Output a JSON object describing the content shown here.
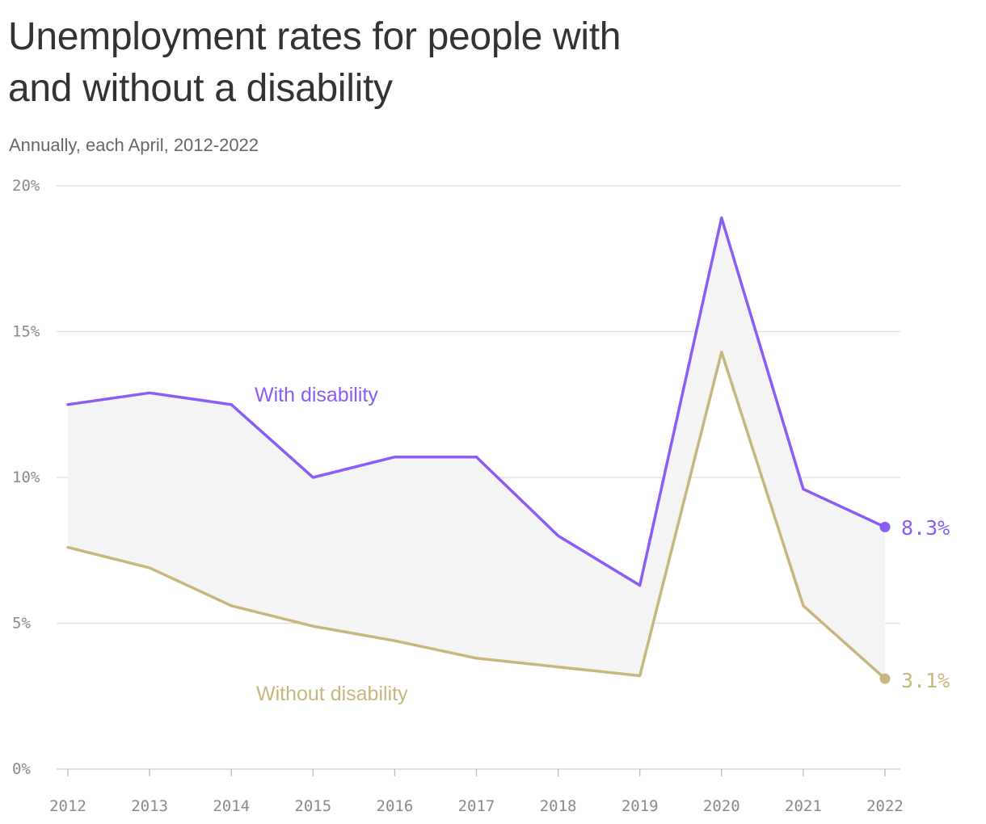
{
  "header": {
    "title_line1": "Unemployment rates for people with",
    "title_line2": "and without a disability",
    "subtitle": "Annually, each April, 2012-2022"
  },
  "colors": {
    "with_disability": "#8b5cf6",
    "without_disability": "#c7b77e",
    "gap_fill": "#f4f4f5",
    "gridline": "#dddddd"
  },
  "chart_data": {
    "type": "line",
    "title": "Unemployment rates for people with and without a disability",
    "subtitle": "Annually, each April, 2012-2022",
    "x": [
      2012,
      2013,
      2014,
      2015,
      2016,
      2017,
      2018,
      2019,
      2020,
      2021,
      2022
    ],
    "x_tick_labels": [
      "2012",
      "2013",
      "2014",
      "2015",
      "2016",
      "2017",
      "2018",
      "2019",
      "2020",
      "2021",
      "2022"
    ],
    "ylim": [
      0,
      20
    ],
    "y_ticks": [
      0,
      5,
      10,
      15,
      20
    ],
    "y_tick_labels": [
      "0%",
      "5%",
      "10%",
      "15%",
      "20%"
    ],
    "grid": true,
    "shaded_gap_between_series": true,
    "series": [
      {
        "name": "With disability",
        "color": "#8b5cf6",
        "values": [
          12.5,
          12.9,
          12.5,
          10.0,
          10.7,
          10.7,
          8.0,
          6.3,
          18.9,
          9.6,
          8.3
        ],
        "end_label": "8.3%"
      },
      {
        "name": "Without disability",
        "color": "#c7b77e",
        "values": [
          7.6,
          6.9,
          5.6,
          4.9,
          4.4,
          3.8,
          3.5,
          3.2,
          14.3,
          5.6,
          3.1
        ],
        "end_label": "3.1%"
      }
    ]
  }
}
